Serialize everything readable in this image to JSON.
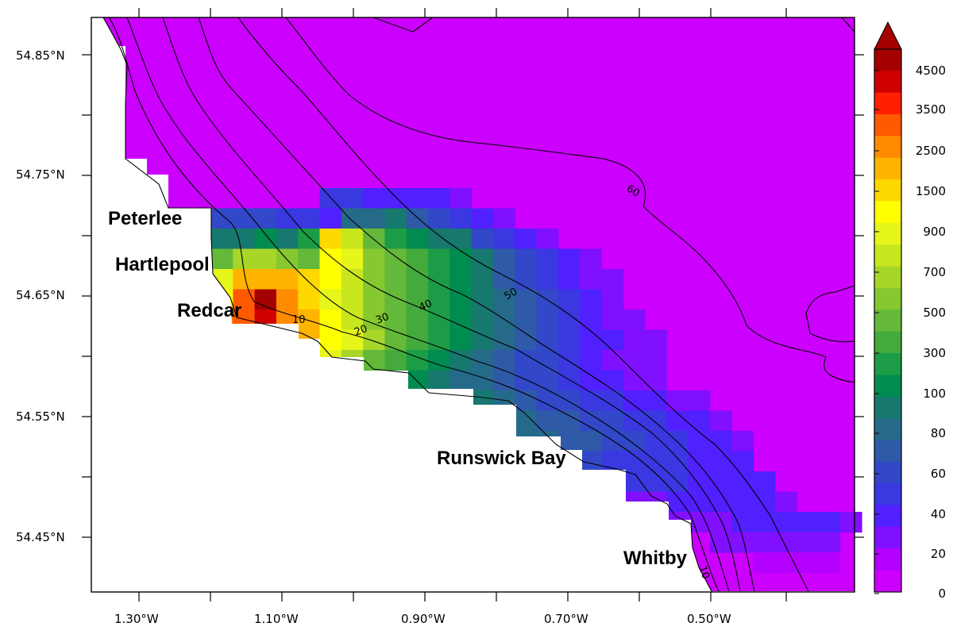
{
  "map": {
    "lat_ticks": [
      "54.85°N",
      "54.75°N",
      "54.65°N",
      "54.55°N",
      "54.45°N"
    ],
    "lon_ticks": [
      "1.30°W",
      "1.10°W",
      "0.90°W",
      "0.70°W",
      "0.50°W"
    ],
    "places": [
      "Peterlee",
      "Hartlepool",
      "Redcar",
      "Runswick Bay",
      "Whitby"
    ],
    "contour_labels": [
      "10",
      "20",
      "30",
      "40",
      "50",
      "60",
      "10"
    ]
  },
  "colorbar": {
    "labels": [
      "4500",
      "3500",
      "2500",
      "1500",
      "900",
      "700",
      "500",
      "300",
      "100",
      "80",
      "60",
      "40",
      "20",
      "0"
    ],
    "colors": [
      "#a50000",
      "#d00000",
      "#ff2000",
      "#ff5a00",
      "#ff8c00",
      "#ffb400",
      "#ffd800",
      "#ffff00",
      "#e6f51a",
      "#c8e61e",
      "#a8d628",
      "#86c830",
      "#64b83a",
      "#44aa3c",
      "#1c9c46",
      "#008c50",
      "#16786e",
      "#266a8a",
      "#2f5aa8",
      "#3248c8",
      "#3a38e0",
      "#5020ff",
      "#8010ff",
      "#b400ff",
      "#cc00ff"
    ]
  }
}
